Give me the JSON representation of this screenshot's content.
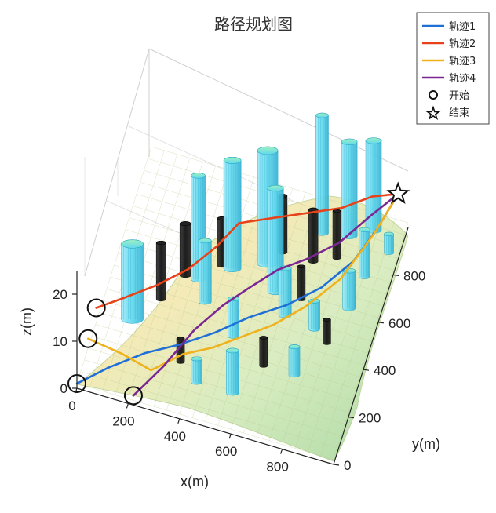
{
  "chart_data": {
    "type": "line3d",
    "title": "路径规划图",
    "xlabel": "x(m)",
    "ylabel": "y(m)",
    "zlabel": "z(m)",
    "xlim": [
      0,
      1000
    ],
    "ylim": [
      0,
      1000
    ],
    "zlim": [
      0,
      25
    ],
    "xticks": [
      "0",
      "200",
      "400",
      "600",
      "800"
    ],
    "yticks": [
      "0",
      "200",
      "400",
      "600",
      "800"
    ],
    "zticks": [
      "0",
      "10",
      "20"
    ],
    "legend_position": "top-right",
    "series": [
      {
        "name": "轨迹1",
        "color": "#1f6fd6",
        "points": [
          [
            0,
            0,
            1
          ],
          [
            100,
            80,
            2
          ],
          [
            220,
            160,
            3
          ],
          [
            330,
            230,
            3
          ],
          [
            450,
            300,
            4
          ],
          [
            560,
            380,
            5
          ],
          [
            680,
            470,
            5
          ],
          [
            790,
            560,
            6
          ],
          [
            880,
            680,
            7
          ],
          [
            940,
            800,
            9
          ],
          [
            990,
            900,
            12
          ]
        ]
      },
      {
        "name": "轨迹2",
        "color": "#e8421a",
        "points": [
          [
            0,
            260,
            4
          ],
          [
            90,
            310,
            5
          ],
          [
            200,
            380,
            6
          ],
          [
            300,
            460,
            7
          ],
          [
            380,
            560,
            8
          ],
          [
            440,
            660,
            9
          ],
          [
            560,
            700,
            10
          ],
          [
            680,
            760,
            10
          ],
          [
            800,
            800,
            11
          ],
          [
            900,
            860,
            12
          ],
          [
            990,
            900,
            12
          ]
        ]
      },
      {
        "name": "轨迹3",
        "color": "#f0b21c",
        "points": [
          [
            0,
            150,
            3
          ],
          [
            140,
            130,
            3
          ],
          [
            260,
            100,
            3
          ],
          [
            360,
            180,
            4
          ],
          [
            460,
            240,
            4
          ],
          [
            560,
            300,
            5
          ],
          [
            660,
            360,
            6
          ],
          [
            760,
            450,
            7
          ],
          [
            860,
            580,
            8
          ],
          [
            940,
            760,
            10
          ],
          [
            990,
            900,
            12
          ]
        ]
      },
      {
        "name": "轨迹4",
        "color": "#7a2794",
        "points": [
          [
            220,
            0,
            2
          ],
          [
            300,
            130,
            3
          ],
          [
            380,
            270,
            5
          ],
          [
            460,
            380,
            6
          ],
          [
            540,
            460,
            7
          ],
          [
            620,
            560,
            7
          ],
          [
            720,
            620,
            8
          ],
          [
            820,
            700,
            9
          ],
          [
            910,
            800,
            11
          ],
          [
            990,
            900,
            12
          ]
        ]
      }
    ],
    "markers": [
      {
        "name": "开始",
        "symbol": "circle",
        "points": [
          [
            0,
            0,
            1
          ],
          [
            0,
            150,
            3
          ],
          [
            0,
            260,
            4
          ],
          [
            220,
            0,
            2
          ]
        ]
      },
      {
        "name": "结束",
        "symbol": "star",
        "points": [
          [
            990,
            900,
            12
          ]
        ]
      }
    ],
    "obstacle_colors": {
      "cyan": "#5fd8ee",
      "black": "#111111",
      "green": "#7fe3a9"
    }
  }
}
